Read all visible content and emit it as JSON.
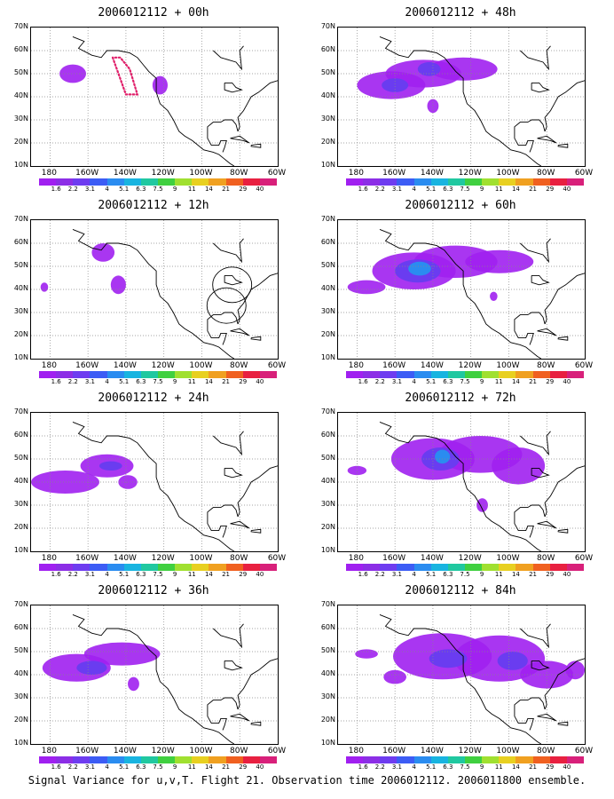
{
  "caption": "Signal Variance for u,v,T. Flight 21. Observation time 2006012112. 2006011800 ensemble.",
  "lat_labels": [
    "70N",
    "60N",
    "50N",
    "40N",
    "30N",
    "20N",
    "10N"
  ],
  "lon_labels": [
    "180",
    "160W",
    "140W",
    "120W",
    "100W",
    "80W",
    "60W"
  ],
  "colorbar": {
    "labels": [
      "1.6",
      "2.2",
      "3.1",
      "4",
      "5.1",
      "6.3",
      "7.5",
      "9",
      "11",
      "14",
      "21",
      "29",
      "40"
    ],
    "colors": [
      "#a020f0",
      "#8c2ee6",
      "#6e3cf0",
      "#3c5cf5",
      "#2a8cf0",
      "#18b4e0",
      "#20c8a0",
      "#40d040",
      "#a0e030",
      "#e8d020",
      "#f0a020",
      "#f06020",
      "#e82040",
      "#d8207a"
    ]
  },
  "panels": [
    {
      "id": "00h",
      "title": "2006012112 + 00h",
      "blobs": [
        [
          -168,
          50,
          7,
          4,
          1
        ],
        [
          -122,
          45,
          4,
          4,
          1
        ]
      ],
      "track": true
    },
    {
      "id": "48h",
      "title": "2006012112 + 48h",
      "blobs": [
        [
          -162,
          45,
          18,
          6,
          1
        ],
        [
          -145,
          50,
          20,
          6,
          1
        ],
        [
          -124,
          52,
          18,
          5,
          1
        ],
        [
          -160,
          45,
          7,
          3,
          2
        ],
        [
          -142,
          52,
          6,
          3,
          2
        ],
        [
          -140,
          36,
          3,
          3,
          1
        ]
      ],
      "track": false
    },
    {
      "id": "12h",
      "title": "2006012112 + 12h",
      "blobs": [
        [
          -152,
          56,
          6,
          4,
          1
        ],
        [
          -144,
          42,
          4,
          4,
          1
        ],
        [
          -183,
          41,
          2,
          2,
          1
        ]
      ],
      "circles": true
    },
    {
      "id": "60h",
      "title": "2006012112 + 60h",
      "blobs": [
        [
          -150,
          48,
          22,
          8,
          1
        ],
        [
          -128,
          52,
          22,
          7,
          1
        ],
        [
          -105,
          52,
          18,
          5,
          1
        ],
        [
          -148,
          48,
          12,
          5,
          2
        ],
        [
          -147,
          49,
          6,
          3,
          3
        ],
        [
          -175,
          41,
          10,
          3,
          1
        ],
        [
          -108,
          37,
          2,
          2,
          1
        ]
      ]
    },
    {
      "id": "24h",
      "title": "2006012112 + 24h",
      "blobs": [
        [
          -172,
          40,
          18,
          5,
          1
        ],
        [
          -150,
          47,
          14,
          5,
          1
        ],
        [
          -148,
          47,
          6,
          2,
          2
        ],
        [
          -139,
          40,
          5,
          3,
          1
        ]
      ]
    },
    {
      "id": "72h",
      "title": "2006012112 + 72h",
      "blobs": [
        [
          -140,
          50,
          22,
          9,
          1
        ],
        [
          -115,
          52,
          22,
          8,
          1
        ],
        [
          -95,
          47,
          14,
          8,
          1
        ],
        [
          -136,
          50,
          10,
          5,
          2
        ],
        [
          -135,
          51,
          4,
          3,
          3
        ],
        [
          -180,
          45,
          5,
          2,
          1
        ],
        [
          -114,
          30,
          3,
          3,
          1
        ]
      ]
    },
    {
      "id": "36h",
      "title": "2006012112 + 36h",
      "blobs": [
        [
          -166,
          43,
          18,
          6,
          1
        ],
        [
          -142,
          49,
          20,
          5,
          1
        ],
        [
          -158,
          43,
          8,
          3,
          2
        ],
        [
          -136,
          36,
          3,
          3,
          1
        ]
      ]
    },
    {
      "id": "84h",
      "title": "2006012112 + 84h",
      "blobs": [
        [
          -135,
          48,
          26,
          10,
          1
        ],
        [
          -105,
          47,
          24,
          10,
          1
        ],
        [
          -80,
          40,
          14,
          6,
          1
        ],
        [
          -160,
          39,
          6,
          3,
          1
        ],
        [
          -175,
          49,
          6,
          2,
          1
        ],
        [
          -132,
          47,
          10,
          4,
          2
        ],
        [
          -98,
          46,
          8,
          4,
          2
        ],
        [
          -65,
          42,
          5,
          4,
          1
        ]
      ]
    }
  ]
}
